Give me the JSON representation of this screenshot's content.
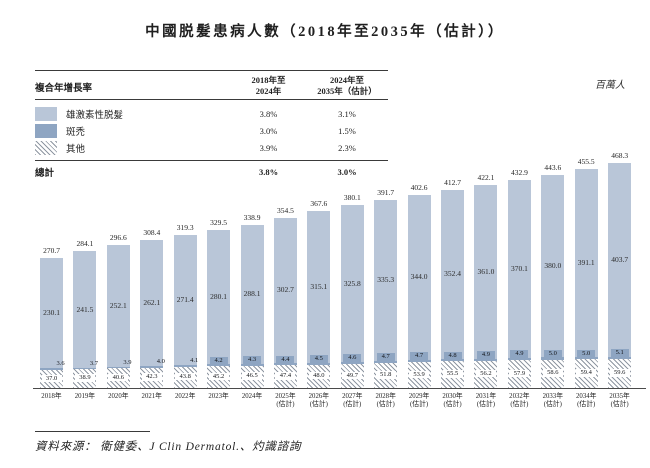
{
  "title": "中國脱髮患病人數（2018年至2035年（估計））",
  "unit_label": "百萬人",
  "cagr_table": {
    "header_label": "複合年增長率",
    "columns": [
      {
        "line1": "2018年至",
        "line2": "2024年"
      },
      {
        "line1": "2024年至",
        "line2": "2035年（估計）"
      }
    ],
    "rows": [
      {
        "name": "雄激素性脱髮",
        "swatch": "light-blue",
        "values": [
          "3.8%",
          "3.1%"
        ]
      },
      {
        "name": "斑禿",
        "swatch": "dark-blue",
        "values": [
          "3.0%",
          "1.5%"
        ]
      },
      {
        "name": "其他",
        "swatch": "diagonal-hatch",
        "values": [
          "3.9%",
          "2.3%"
        ]
      }
    ],
    "total": {
      "label": "總計",
      "values": [
        "3.8%",
        "3.0%"
      ]
    }
  },
  "chart_data": {
    "type": "bar",
    "stacked": true,
    "title": "中國脱髮患病人數（2018年至2035年（估計））",
    "ylabel": "百萬人",
    "ylim": [
      0,
      470
    ],
    "grid": false,
    "legend_position": "top-left-table",
    "categories": [
      "2018年",
      "2019年",
      "2020年",
      "2021年",
      "2022年",
      "2023年",
      "2024年",
      "2025年\n(估計)",
      "2026年\n(估計)",
      "2027年\n(估計)",
      "2028年\n(估計)",
      "2029年\n(估計)",
      "2030年\n(估計)",
      "2031年\n(估計)",
      "2032年\n(估計)",
      "2033年\n(估計)",
      "2034年\n(估計)",
      "2035年\n(估計)"
    ],
    "series_order": "bottom-to-top",
    "series": [
      {
        "name": "其他",
        "style": "hatch",
        "values": [
          37.0,
          38.9,
          40.6,
          42.3,
          43.8,
          45.2,
          46.5,
          47.4,
          48.0,
          49.7,
          51.8,
          53.9,
          55.5,
          56.2,
          57.9,
          58.6,
          59.4,
          59.6
        ]
      },
      {
        "name": "斑禿",
        "style": "dark",
        "values": [
          3.6,
          3.7,
          3.9,
          4.0,
          4.1,
          4.2,
          4.3,
          4.4,
          4.5,
          4.6,
          4.7,
          4.7,
          4.8,
          4.9,
          4.9,
          5.0,
          5.0,
          5.1
        ]
      },
      {
        "name": "雄激素性脱髮",
        "style": "light",
        "values": [
          230.1,
          241.5,
          252.1,
          262.1,
          271.4,
          280.1,
          288.1,
          302.7,
          315.1,
          325.8,
          335.3,
          344.0,
          352.4,
          361.0,
          370.1,
          380.0,
          391.1,
          403.7
        ]
      }
    ],
    "totals": [
      270.7,
      284.1,
      296.6,
      308.4,
      319.3,
      329.5,
      338.9,
      354.5,
      367.6,
      380.1,
      391.7,
      402.6,
      412.7,
      422.1,
      432.9,
      443.6,
      455.5,
      468.3
    ]
  },
  "colors": {
    "light_blue": "#b9c6d8",
    "dark_blue": "#8ea5c2",
    "hatch_line": "#8f97a2",
    "rule": "#3a3a3a"
  },
  "source": "資料來源：  衛健委、J Clin Dermatol.、灼識諮詢"
}
